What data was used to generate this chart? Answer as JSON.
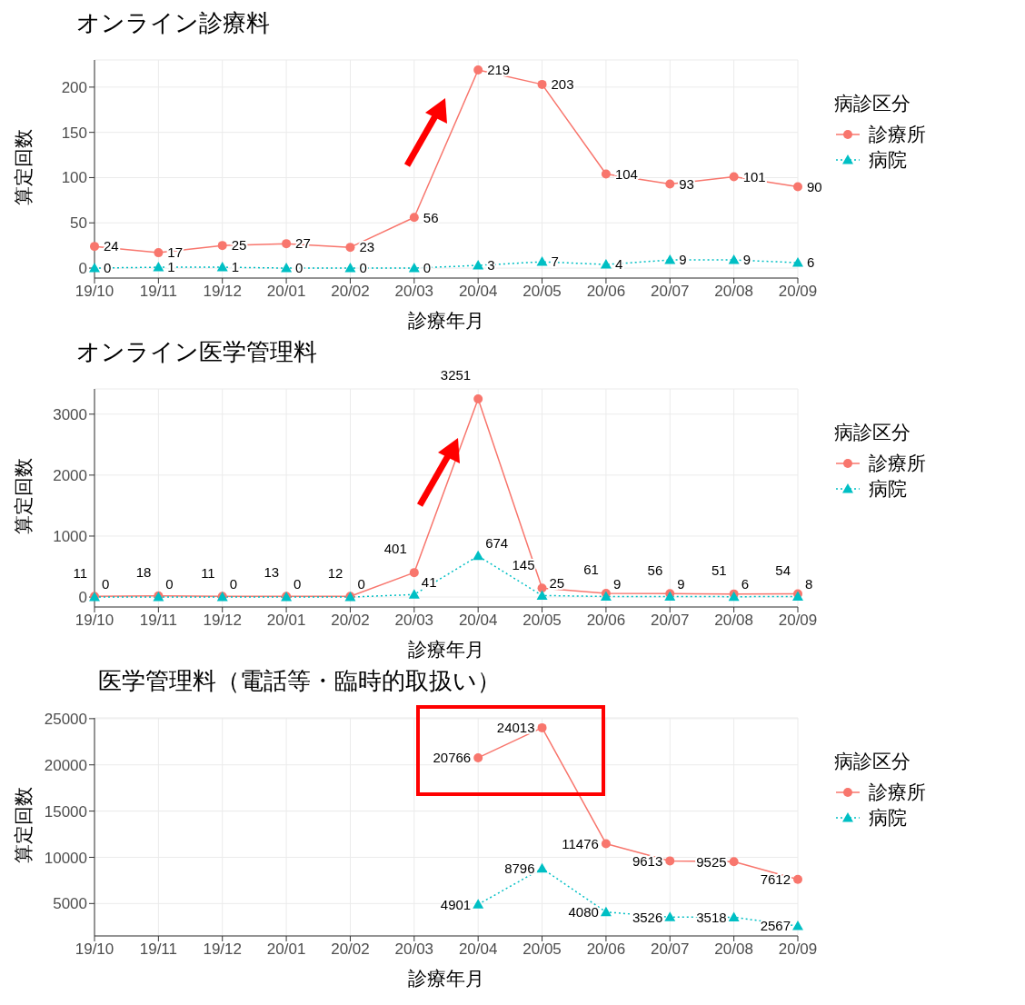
{
  "chart_data": [
    {
      "type": "line",
      "title": "オンライン診療料",
      "xlabel": "診療年月",
      "ylabel": "算定回数",
      "legend_title": "病診区分",
      "legend": "right",
      "grid": true,
      "data_labels": true,
      "categories": [
        "19/10",
        "19/11",
        "19/12",
        "20/01",
        "20/02",
        "20/03",
        "20/04",
        "20/05",
        "20/06",
        "20/07",
        "20/08",
        "20/09"
      ],
      "ylim": [
        -11,
        230
      ],
      "yticks": [
        0,
        50,
        100,
        150,
        200
      ],
      "series": [
        {
          "name": "診療所",
          "color": "#f8766d",
          "marker": "circle",
          "line_style": "solid",
          "values": [
            24,
            17,
            25,
            27,
            23,
            56,
            219,
            203,
            104,
            93,
            101,
            90
          ]
        },
        {
          "name": "病院",
          "color": "#00bfc4",
          "marker": "triangle",
          "line_style": "dotted",
          "values": [
            0,
            1,
            1,
            0,
            0,
            0,
            3,
            7,
            4,
            9,
            9,
            6
          ]
        }
      ]
    },
    {
      "type": "line",
      "title": "オンライン医学管理料",
      "xlabel": "診療年月",
      "ylabel": "算定回数",
      "legend_title": "病診区分",
      "legend": "right",
      "grid": true,
      "data_labels": true,
      "categories": [
        "19/10",
        "19/11",
        "19/12",
        "20/01",
        "20/02",
        "20/03",
        "20/04",
        "20/05",
        "20/06",
        "20/07",
        "20/08",
        "20/09"
      ],
      "ylim": [
        -163,
        3414
      ],
      "yticks": [
        0,
        1000,
        2000,
        3000
      ],
      "series": [
        {
          "name": "診療所",
          "color": "#f8766d",
          "marker": "circle",
          "line_style": "solid",
          "values": [
            11,
            18,
            11,
            13,
            12,
            401,
            3251,
            145,
            61,
            56,
            51,
            54
          ]
        },
        {
          "name": "病院",
          "color": "#00bfc4",
          "marker": "triangle",
          "line_style": "dotted",
          "values": [
            0,
            0,
            0,
            0,
            0,
            41,
            674,
            25,
            9,
            9,
            6,
            8
          ]
        }
      ]
    },
    {
      "type": "line",
      "title": "医学管理料（電話等・臨時的取扱い）",
      "xlabel": "診療年月",
      "ylabel": "算定回数",
      "legend_title": "病診区分",
      "legend": "right",
      "grid": true,
      "data_labels": true,
      "categories": [
        "19/10",
        "19/11",
        "19/12",
        "20/01",
        "20/02",
        "20/03",
        "20/04",
        "20/05",
        "20/06",
        "20/07",
        "20/08",
        "20/09"
      ],
      "ylim": [
        1495,
        25085
      ],
      "yticks": [
        5000,
        10000,
        15000,
        20000,
        25000
      ],
      "series": [
        {
          "name": "診療所",
          "color": "#f8766d",
          "marker": "circle",
          "line_style": "solid",
          "values": [
            null,
            null,
            null,
            null,
            null,
            null,
            20766,
            24013,
            11476,
            9613,
            9525,
            7612
          ]
        },
        {
          "name": "病院",
          "color": "#00bfc4",
          "marker": "triangle",
          "line_style": "dotted",
          "values": [
            null,
            null,
            null,
            null,
            null,
            null,
            4901,
            8796,
            4080,
            3526,
            3518,
            2567
          ]
        }
      ]
    }
  ]
}
